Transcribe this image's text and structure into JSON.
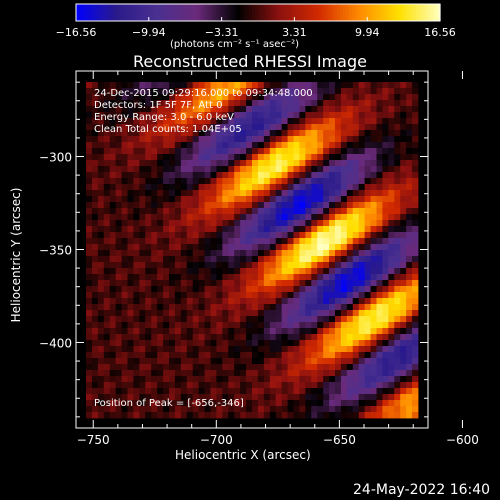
{
  "chart_data": {
    "type": "heatmap",
    "title": "Reconstructed RHESSI Image",
    "xlabel": "Heliocentric X (arcsec)",
    "ylabel": "Heliocentric Y (arcsec)",
    "xlim": [
      -757,
      -614
    ],
    "ylim": [
      -446,
      -254
    ],
    "xticks": [
      -750,
      -700,
      -650,
      -600
    ],
    "yticks": [
      -300,
      -350,
      -400
    ],
    "colorbar": {
      "label": "(photons cm⁻² s⁻¹ asec⁻²)",
      "ticks": [
        -16.56,
        -9.94,
        -3.31,
        3.31,
        9.94,
        16.56
      ],
      "min": -16.56,
      "max": 16.56,
      "colors": [
        "#0000ff",
        "#2a1a8a",
        "#4a3090",
        "#6a2a7a",
        "#000000",
        "#8a1010",
        "#d22a00",
        "#ff8a00",
        "#ffe000",
        "#ffffc0"
      ]
    },
    "peak": [
      -656,
      -346
    ],
    "annotations": {
      "time": "24-Dec-2015 09:29:16.000 to 09:34:48.000",
      "detectors": "Detectors: 1F 5F 7F, Att 0",
      "energy": "Energy Range: 3.0 - 6.0 keV",
      "clean": "Clean    Total counts: 1.04E+05",
      "peak_label": "Position of Peak = [-656,-346]"
    }
  },
  "page": {
    "timestamp": "24-May-2022 16:40"
  }
}
